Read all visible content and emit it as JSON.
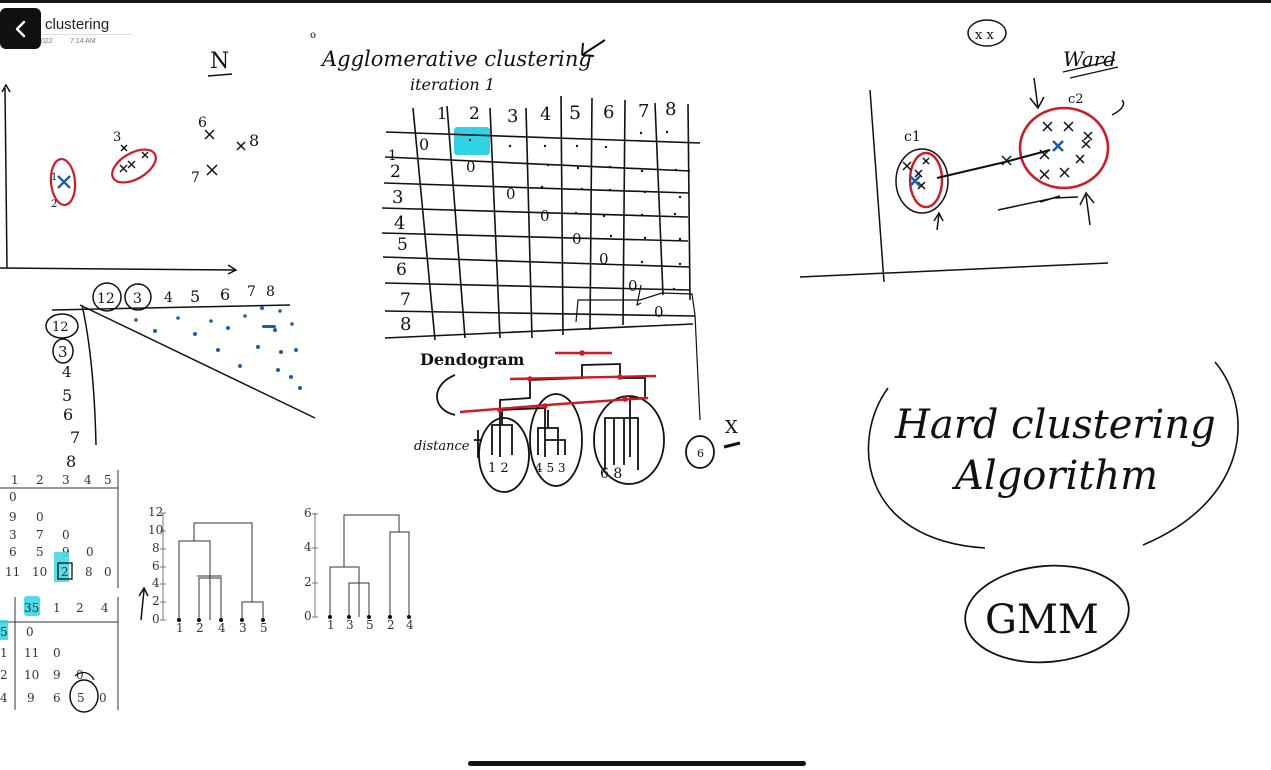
{
  "header": {
    "title": "clustering",
    "date": "022",
    "time": "7:14 AM"
  },
  "icons": {
    "back": "chevron-left-icon"
  },
  "notes": {
    "heading": "Agglomerative clustering",
    "iteration": "iteration 1",
    "n_label": "N",
    "dendrogram_label": "Dendogram",
    "distance_label": "distance",
    "ward_label": "Ward",
    "c1_label": "c1",
    "c2_label": "c2",
    "hard_line1": "Hard clustering",
    "hard_line2": "Algorithm",
    "gmm": "GMM",
    "xx_mark": "x x",
    "x_mark": "X",
    "leaves_1": "1 2",
    "leaves_2": "4 5 3",
    "leaves_3": "6 8",
    "leaf_6": "6"
  },
  "matrix": {
    "columns": [
      "1",
      "2",
      "3",
      "4",
      "5",
      "6",
      "7",
      "8"
    ],
    "rows": [
      "1",
      "2",
      "3",
      "4",
      "5",
      "6",
      "7",
      "8"
    ],
    "diagonal": "0"
  },
  "left_matrix": {
    "top_labels": [
      "12",
      "3",
      "4",
      "5",
      "6",
      "7",
      "8"
    ],
    "side_labels": [
      "12",
      "3",
      "4",
      "5",
      "6",
      "7",
      "8"
    ]
  },
  "distance_table_1": {
    "header": [
      "1",
      "2",
      "3",
      "4",
      "5"
    ],
    "rows": [
      [
        "0"
      ],
      [
        "9",
        "0"
      ],
      [
        "3",
        "7",
        "0"
      ],
      [
        "6",
        "5",
        "9",
        "0"
      ],
      [
        "11",
        "10",
        "2",
        "8",
        "0"
      ]
    ]
  },
  "distance_table_2": {
    "header": [
      "35",
      "1",
      "2",
      "4"
    ],
    "side": [
      "5",
      "1",
      "2",
      "4"
    ],
    "rows": [
      [
        "0"
      ],
      [
        "11",
        "0"
      ],
      [
        "10",
        "9",
        "0"
      ],
      [
        "9",
        "6",
        "5",
        "0"
      ]
    ]
  },
  "dendro1": {
    "yticks": [
      "0",
      "2",
      "4",
      "6",
      "8",
      "10",
      "12"
    ],
    "leaves": [
      "1",
      "2",
      "4",
      "3",
      "5"
    ]
  },
  "dendro2": {
    "yticks": [
      "0",
      "2",
      "4",
      "6"
    ],
    "leaves": [
      "1",
      "3",
      "5",
      "2",
      "4"
    ]
  },
  "scatter_labels": {
    "p3": "3",
    "p6": "6",
    "p7": "7",
    "p8": "8",
    "p1": "1",
    "p2": "2"
  },
  "colors": {
    "ink": "#111111",
    "red": "#d01a24",
    "blue": "#1d5fa6",
    "highlight": "#2fd3e4"
  }
}
